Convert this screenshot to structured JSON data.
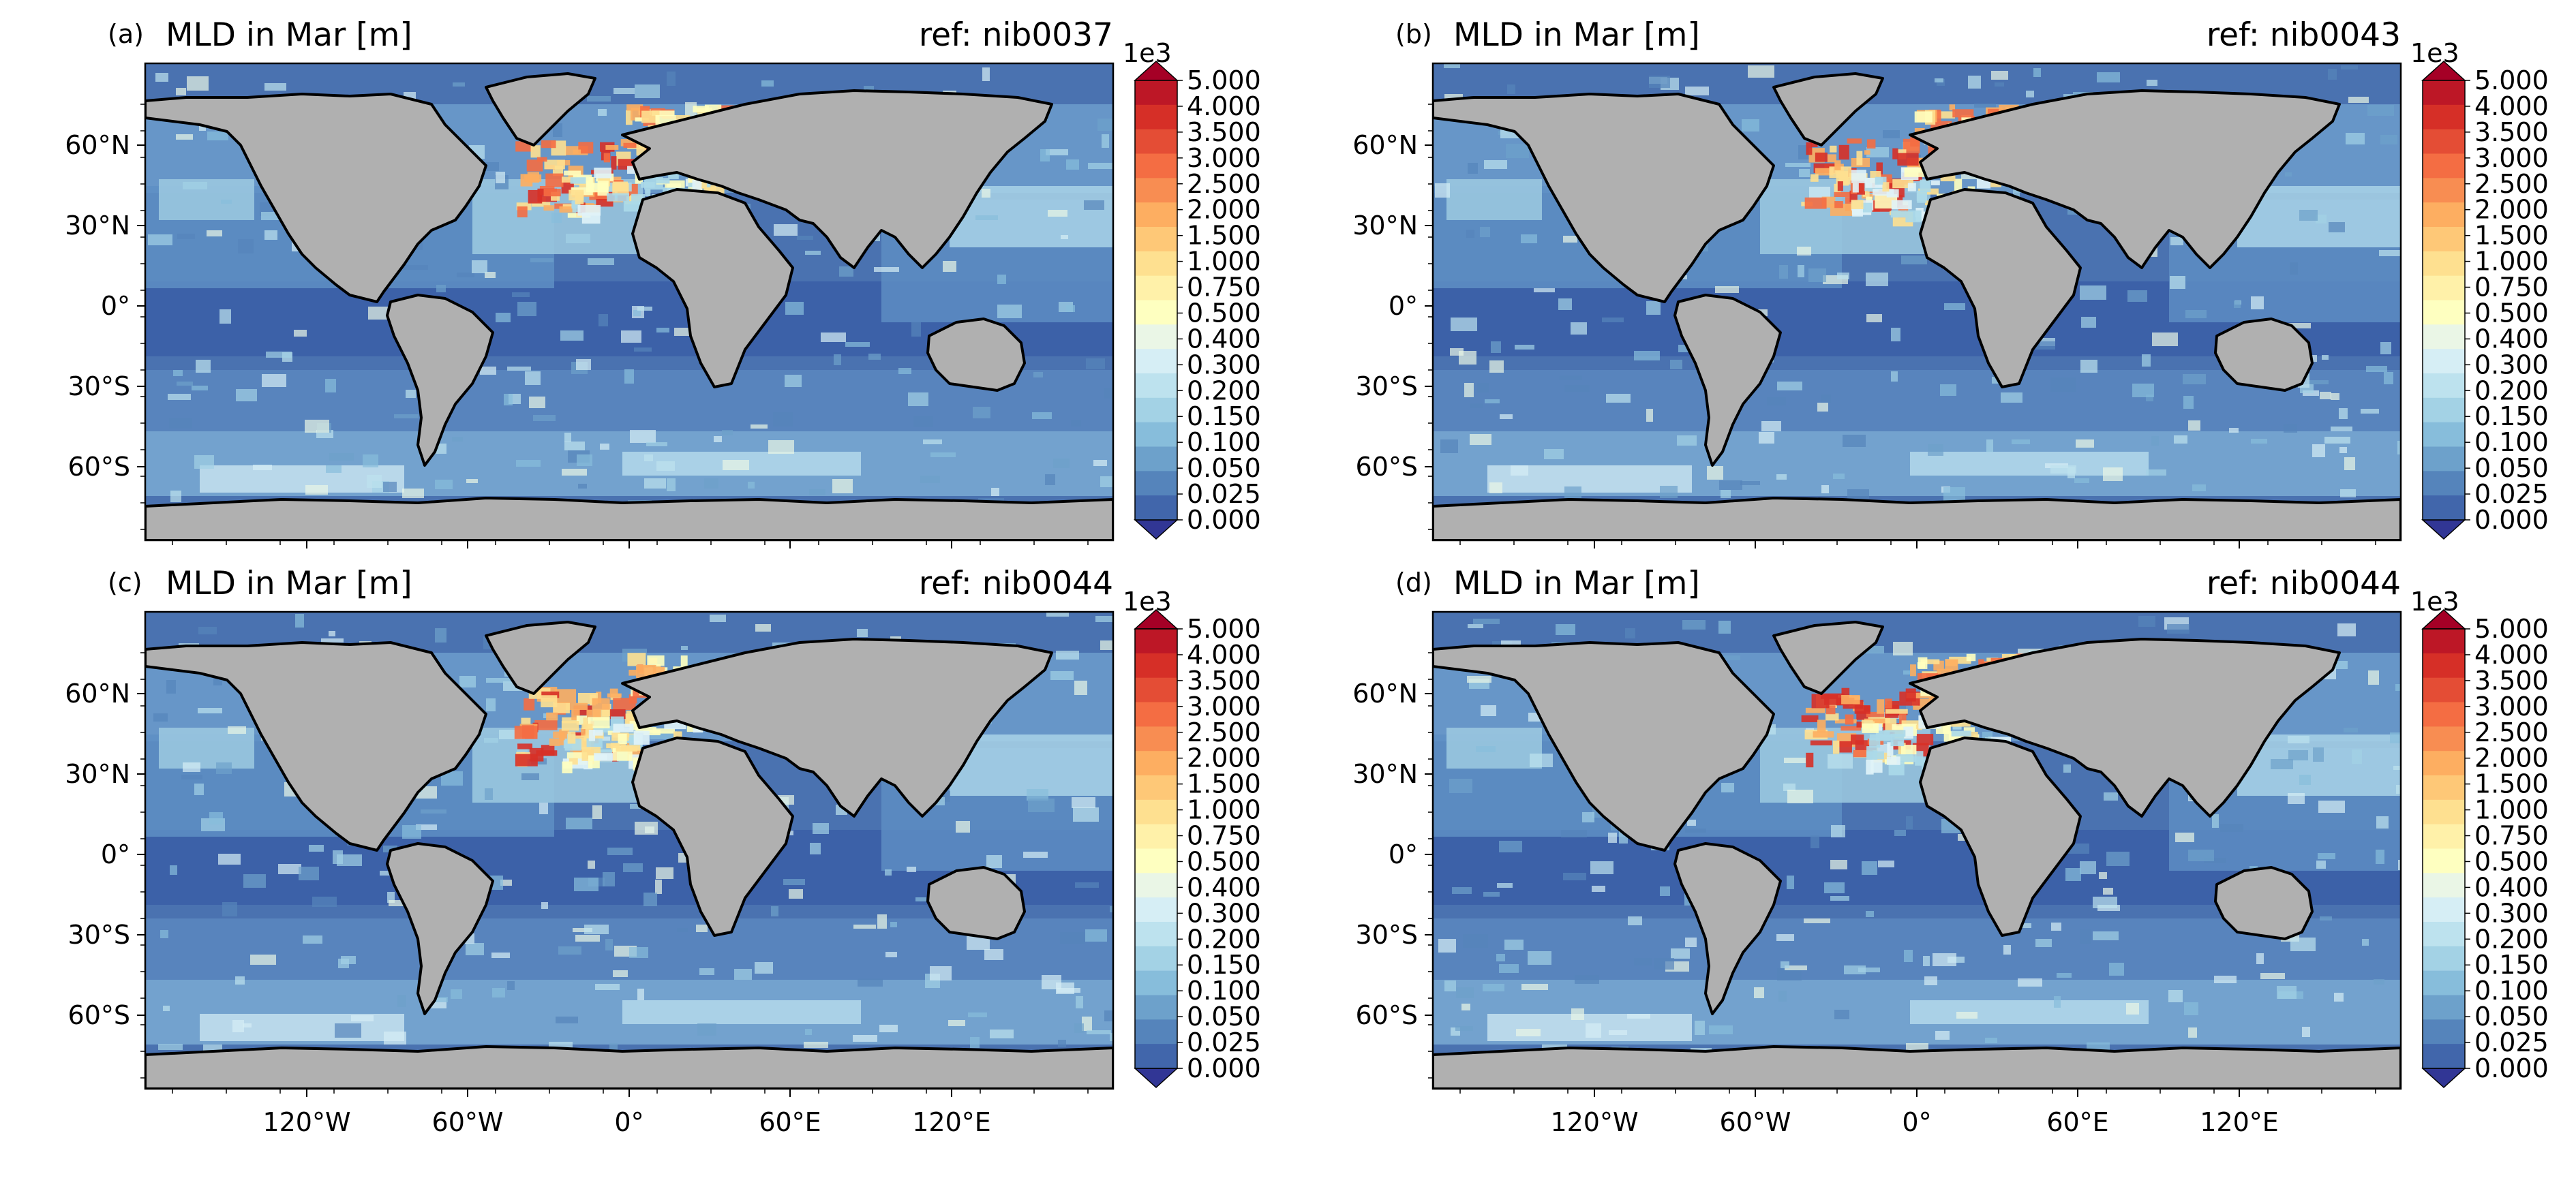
{
  "figure": {
    "x_ticks": [
      "120°W",
      "60°W",
      "0°",
      "60°E",
      "120°E"
    ],
    "y_ticks": [
      "60°N",
      "30°N",
      "0°",
      "30°S",
      "60°S"
    ],
    "colorbar": {
      "multiplier": "1e3",
      "levels": [
        "5.000",
        "4.000",
        "3.500",
        "3.000",
        "2.500",
        "2.000",
        "1.500",
        "1.000",
        "0.750",
        "0.500",
        "0.400",
        "0.300",
        "0.200",
        "0.150",
        "0.100",
        "0.050",
        "0.025",
        "0.000"
      ],
      "colors": [
        "#bd1726",
        "#d62f27",
        "#e44d35",
        "#f46d43",
        "#f88d52",
        "#fdae61",
        "#fec877",
        "#fee090",
        "#fff1a9",
        "#feffc0",
        "#eaf6e6",
        "#d6eef5",
        "#bde2ee",
        "#a3d2e5",
        "#87bddb",
        "#6da1cb",
        "#5584bb",
        "#4166ab"
      ],
      "extend": "both",
      "extend_low_color": "#313695",
      "extend_high_color": "#a50026"
    },
    "land_color": "#b0b0b0",
    "ocean_base_color": "#4a72b0",
    "panels": [
      {
        "label": "(a)",
        "title": "MLD in Mar [m]",
        "ref": "ref: nib0037"
      },
      {
        "label": "(b)",
        "title": "MLD in Mar [m]",
        "ref": "ref: nib0043"
      },
      {
        "label": "(c)",
        "title": "MLD in Mar [m]",
        "ref": "ref: nib0044"
      },
      {
        "label": "(d)",
        "title": "MLD in Mar [m]",
        "ref": "ref: nib0044"
      }
    ]
  }
}
